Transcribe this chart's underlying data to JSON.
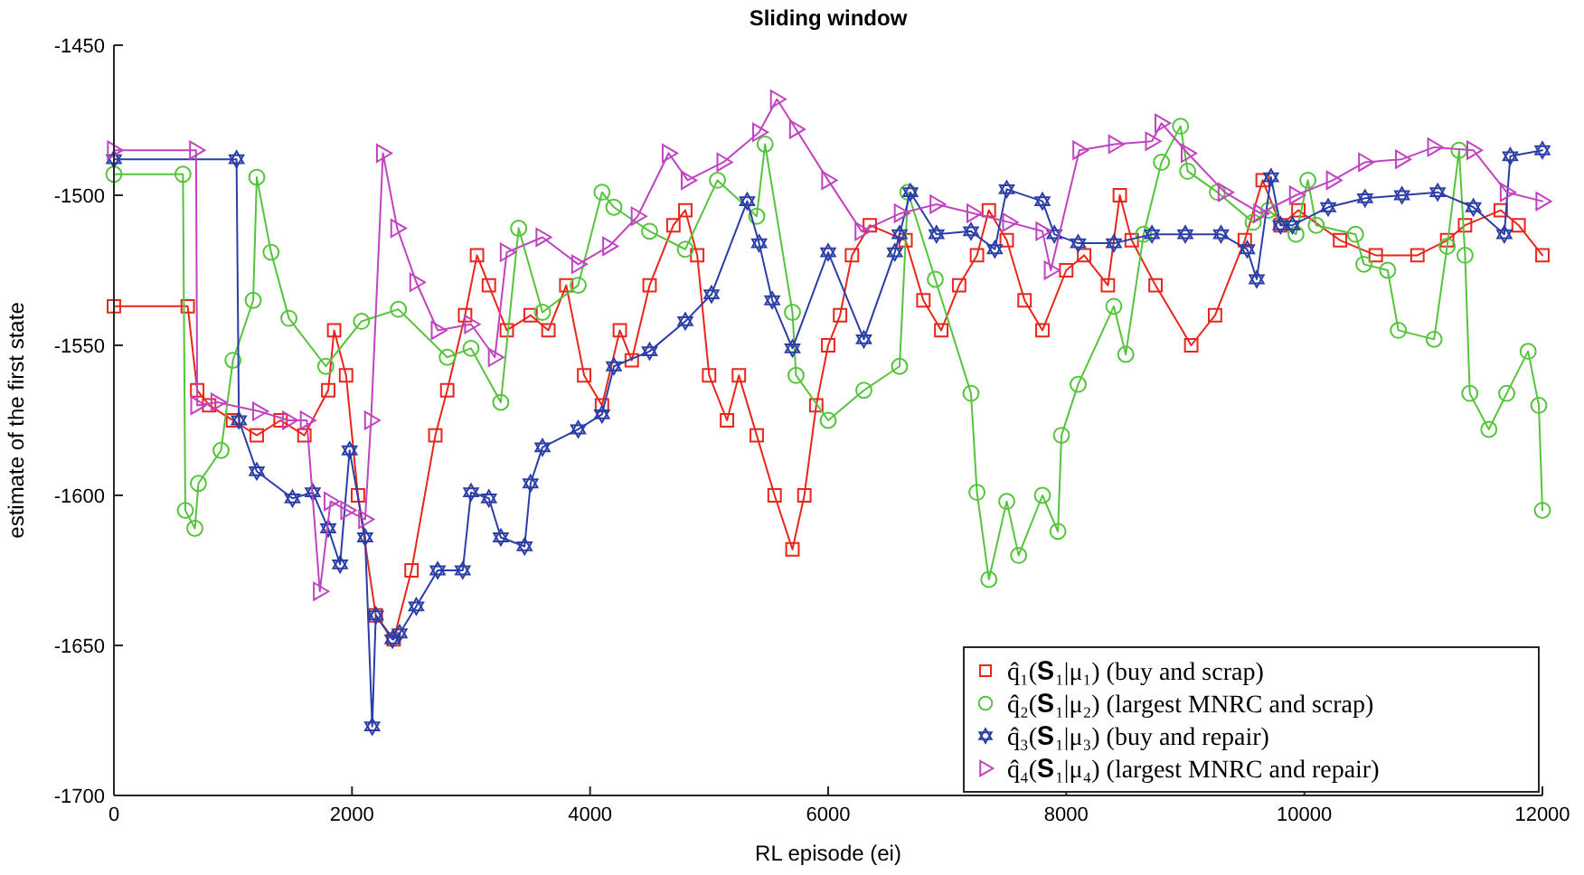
{
  "chart_data": {
    "type": "line",
    "title": "Sliding window",
    "xlabel": "RL episode (ei)",
    "ylabel": "estimate of the first state",
    "xlim": [
      0,
      12000
    ],
    "xticks": [
      0,
      2000,
      4000,
      6000,
      8000,
      10000,
      12000
    ],
    "ylim": [
      -1700,
      -1450
    ],
    "yticks": [
      -1700,
      -1650,
      -1600,
      -1550,
      -1500,
      -1450
    ],
    "grid": false,
    "legend": "bottom right",
    "line_style": "solid",
    "series": [
      {
        "name": "q̂₁(𝐒₁|μ₁) (buy and scrap)",
        "color": "#e8261c",
        "marker": "square",
        "x": [
          0,
          620,
          700,
          800,
          1000,
          1200,
          1400,
          1600,
          1800,
          1850,
          1950,
          2050,
          2200,
          2350,
          2500,
          2700,
          2800,
          2950,
          3050,
          3150,
          3300,
          3500,
          3650,
          3800,
          3950,
          4100,
          4250,
          4350,
          4500,
          4700,
          4800,
          4900,
          5000,
          5150,
          5250,
          5400,
          5550,
          5700,
          5800,
          5900,
          6000,
          6100,
          6200,
          6350,
          6650,
          6800,
          6950,
          7100,
          7250,
          7350,
          7500,
          7650,
          7800,
          8000,
          8150,
          8350,
          8450,
          8550,
          8750,
          9050,
          9250,
          9500,
          9650,
          9800,
          9950,
          10300,
          10600,
          10950,
          11200,
          11350,
          11650,
          11800,
          12000
        ],
        "values": [
          -1537,
          -1537,
          -1565,
          -1570,
          -1575,
          -1580,
          -1575,
          -1580,
          -1565,
          -1545,
          -1560,
          -1600,
          -1640,
          -1648,
          -1625,
          -1580,
          -1565,
          -1540,
          -1520,
          -1530,
          -1545,
          -1540,
          -1545,
          -1530,
          -1560,
          -1570,
          -1545,
          -1555,
          -1530,
          -1510,
          -1505,
          -1520,
          -1560,
          -1575,
          -1560,
          -1580,
          -1600,
          -1618,
          -1600,
          -1570,
          -1550,
          -1540,
          -1520,
          -1510,
          -1515,
          -1535,
          -1545,
          -1530,
          -1520,
          -1505,
          -1515,
          -1535,
          -1545,
          -1525,
          -1520,
          -1530,
          -1500,
          -1515,
          -1530,
          -1550,
          -1540,
          -1515,
          -1495,
          -1510,
          -1505,
          -1515,
          -1520,
          -1520,
          -1515,
          -1510,
          -1505,
          -1510,
          -1520
        ]
      },
      {
        "name": "q̂₂(𝐒₁|μ₂) (largest MNRC and scrap)",
        "color": "#55c43c",
        "marker": "circle",
        "x": [
          0,
          580,
          600,
          680,
          710,
          900,
          1000,
          1170,
          1200,
          1320,
          1470,
          1780,
          2080,
          2390,
          2800,
          3000,
          3250,
          3400,
          3600,
          3900,
          4100,
          4200,
          4500,
          4800,
          5070,
          5400,
          5470,
          5700,
          5730,
          6000,
          6300,
          6600,
          6670,
          6900,
          7200,
          7250,
          7350,
          7500,
          7600,
          7800,
          7930,
          7960,
          8100,
          8400,
          8500,
          8650,
          8800,
          8960,
          9020,
          9270,
          9570,
          9700,
          9930,
          10030,
          10100,
          10430,
          10500,
          10700,
          10790,
          11090,
          11200,
          11300,
          11350,
          11390,
          11550,
          11700,
          11880,
          11970,
          12000
        ],
        "values": [
          -1493,
          -1493,
          -1605,
          -1611,
          -1596,
          -1585,
          -1555,
          -1535,
          -1494,
          -1519,
          -1541,
          -1557,
          -1542,
          -1538,
          -1554,
          -1551,
          -1569,
          -1511,
          -1539,
          -1530,
          -1499,
          -1504,
          -1512,
          -1518,
          -1495,
          -1507,
          -1483,
          -1539,
          -1560,
          -1575,
          -1565,
          -1557,
          -1499,
          -1528,
          -1566,
          -1599,
          -1628,
          -1602,
          -1620,
          -1600,
          -1612,
          -1580,
          -1563,
          -1537,
          -1553,
          -1513,
          -1489,
          -1477,
          -1492,
          -1499,
          -1509,
          -1505,
          -1513,
          -1495,
          -1510,
          -1513,
          -1523,
          -1525,
          -1545,
          -1548,
          -1517,
          -1485,
          -1520,
          -1566,
          -1578,
          -1566,
          -1552,
          -1570,
          -1605
        ]
      },
      {
        "name": "q̂₃(𝐒₁|μ₃) (buy and repair)",
        "color": "#2a3ea6",
        "marker": "star",
        "x": [
          0,
          1030,
          1050,
          1200,
          1500,
          1670,
          1800,
          1900,
          1980,
          2110,
          2170,
          2200,
          2340,
          2400,
          2540,
          2720,
          2930,
          3000,
          3150,
          3250,
          3450,
          3500,
          3600,
          3900,
          4100,
          4200,
          4500,
          4800,
          5020,
          5320,
          5420,
          5530,
          5700,
          6000,
          6300,
          6560,
          6600,
          6690,
          6910,
          7200,
          7400,
          7500,
          7800,
          7900,
          8100,
          8400,
          8720,
          9000,
          9300,
          9520,
          9600,
          9720,
          9800,
          9900,
          10200,
          10510,
          10820,
          11120,
          11420,
          11680,
          11730,
          12000
        ],
        "values": [
          -1488,
          -1488,
          -1575,
          -1592,
          -1601,
          -1599,
          -1611,
          -1623,
          -1585,
          -1614,
          -1677,
          -1640,
          -1648,
          -1646,
          -1637,
          -1625,
          -1625,
          -1599,
          -1601,
          -1614,
          -1617,
          -1596,
          -1584,
          -1578,
          -1573,
          -1557,
          -1552,
          -1542,
          -1533,
          -1502,
          -1516,
          -1535,
          -1551,
          -1519,
          -1548,
          -1519,
          -1513,
          -1499,
          -1513,
          -1512,
          -1518,
          -1498,
          -1502,
          -1513,
          -1516,
          -1516,
          -1513,
          -1513,
          -1513,
          -1518,
          -1528,
          -1494,
          -1510,
          -1510,
          -1504,
          -1501,
          -1500,
          -1499,
          -1504,
          -1513,
          -1487,
          -1485
        ]
      },
      {
        "name": "q̂₄(𝐒₁|μ₄) (largest MNRC and repair)",
        "color": "#c044c0",
        "marker": "triangle",
        "x": [
          0,
          690,
          700,
          870,
          1220,
          1470,
          1620,
          1730,
          1820,
          1960,
          2110,
          2160,
          2260,
          2380,
          2540,
          2720,
          3000,
          3200,
          3300,
          3600,
          3900,
          4160,
          4400,
          4660,
          4820,
          5120,
          5420,
          5570,
          5730,
          6000,
          6280,
          6610,
          6910,
          7220,
          7520,
          7800,
          7870,
          8110,
          8410,
          8720,
          8800,
          9020,
          9330,
          9630,
          9930,
          10240,
          10510,
          10820,
          11090,
          11420,
          11700,
          12000
        ],
        "values": [
          -1485,
          -1485,
          -1570,
          -1569,
          -1572,
          -1575,
          -1575,
          -1632,
          -1602,
          -1605,
          -1608,
          -1575,
          -1486,
          -1511,
          -1529,
          -1545,
          -1543,
          -1554,
          -1519,
          -1514,
          -1523,
          -1517,
          -1507,
          -1486,
          -1495,
          -1489,
          -1479,
          -1468,
          -1478,
          -1495,
          -1512,
          -1506,
          -1503,
          -1506,
          -1509,
          -1512,
          -1525,
          -1485,
          -1483,
          -1482,
          -1476,
          -1486,
          -1499,
          -1506,
          -1500,
          -1495,
          -1489,
          -1488,
          -1484,
          -1485,
          -1499,
          -1502
        ]
      }
    ]
  }
}
